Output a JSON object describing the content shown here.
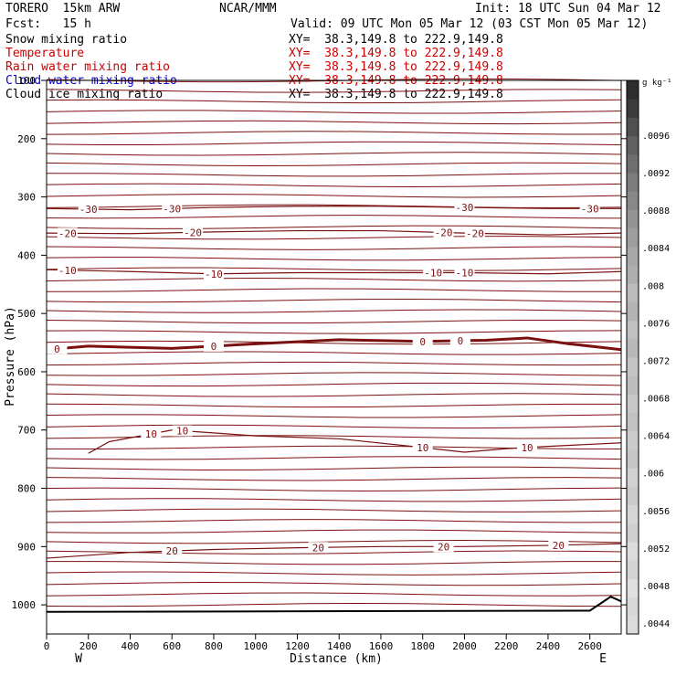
{
  "header": {
    "model": "TORERO  15km ARW",
    "center": "NCAR/MMM",
    "init": "Init: 18 UTC Sun 04 Mar 12",
    "fcst": "Fcst:   15 h",
    "valid": "Valid: 09 UTC Mon 05 Mar 12 (03 CST Mon 05 Mar 12)"
  },
  "legend": [
    {
      "name": "Snow mixing ratio",
      "xy": "XY=  38.3,149.8 to 222.9,149.8",
      "color": "#000000"
    },
    {
      "name": "Temperature",
      "xy": "XY=  38.3,149.8 to 222.9,149.8",
      "color": "#cc0000"
    },
    {
      "name": "Rain water mixing ratio",
      "xy": "XY=  38.3,149.8 to 222.9,149.8",
      "color": "#cc0000"
    },
    {
      "name": "Cloud water mixing ratio",
      "xy": "XY=  38.3,149.8 to 222.9,149.8",
      "color": "#0000cc"
    },
    {
      "name": "Cloud ice mixing ratio",
      "xy": "XY=  38.3,149.8 to 222.9,149.8",
      "color": "#000000"
    }
  ],
  "chart_data": {
    "type": "contour",
    "xlabel": "Distance (km)",
    "ylabel": "Pressure (hPa)",
    "xlim": [
      0,
      2750
    ],
    "ylim": [
      1050,
      100
    ],
    "x_ticks": [
      0,
      200,
      400,
      600,
      800,
      1000,
      1200,
      1400,
      1600,
      1800,
      2000,
      2200,
      2400,
      2600
    ],
    "y_ticks": [
      100,
      200,
      300,
      400,
      500,
      600,
      700,
      800,
      900,
      1000
    ],
    "y_tick_labels": [
      "100",
      "200",
      "300",
      "400",
      "500",
      "600",
      "700",
      "800",
      "900",
      "1000"
    ],
    "x_end_labels": {
      "left": "W",
      "right": "E"
    },
    "colorbar": {
      "unit": "g kg⁻¹",
      "labels": [
        ".0096",
        ".0092",
        ".0088",
        ".0084",
        ".008",
        ".0076",
        ".0072",
        ".0068",
        ".0064",
        ".006",
        ".0056",
        ".0052",
        ".0048",
        ".0044"
      ],
      "colors": [
        "#dcdcdc",
        "#d8d8d8",
        "#e0e0e0",
        "#d4d4d4",
        "#dcdcdc",
        "#cfcfcf",
        "#d6d6d6",
        "#cbcbcb",
        "#d2d2d2",
        "#c6c6c6",
        "#cccccc",
        "#c2c2c2",
        "#c8c8c8",
        "#bdbdbd",
        "#c4c4c4",
        "#b8b8b8",
        "#c0c0c0",
        "#b3b3b3",
        "#bbbbbb",
        "#aeaeae",
        "#a8a8a8",
        "#9e9e9e",
        "#949494",
        "#888888",
        "#7c7c7c",
        "#6e6e6e",
        "#606060",
        "#505050",
        "#3c3c3c",
        "#2e2e2e"
      ]
    },
    "temperature_contours": [
      {
        "label": "-30",
        "points": [
          [
            0,
            320
          ],
          [
            400,
            322
          ],
          [
            800,
            318
          ],
          [
            1200,
            316
          ],
          [
            1600,
            316
          ],
          [
            2000,
            318
          ],
          [
            2400,
            320
          ],
          [
            2750,
            320
          ]
        ],
        "label_x": [
          200,
          600,
          2000,
          2600
        ]
      },
      {
        "label": "-20",
        "points": [
          [
            0,
            362
          ],
          [
            400,
            363
          ],
          [
            800,
            360
          ],
          [
            1200,
            358
          ],
          [
            1600,
            358
          ],
          [
            2000,
            362
          ],
          [
            2400,
            365
          ],
          [
            2750,
            362
          ]
        ],
        "label_x": [
          100,
          700,
          1900,
          2050
        ]
      },
      {
        "label": "-10",
        "points": [
          [
            0,
            425
          ],
          [
            400,
            428
          ],
          [
            800,
            432
          ],
          [
            1200,
            430
          ],
          [
            1600,
            430
          ],
          [
            2000,
            430
          ],
          [
            2400,
            432
          ],
          [
            2750,
            428
          ]
        ],
        "label_x": [
          100,
          800,
          1850,
          2000
        ]
      },
      {
        "label": "0",
        "points": [
          [
            0,
            562
          ],
          [
            200,
            556
          ],
          [
            600,
            560
          ],
          [
            1000,
            552
          ],
          [
            1400,
            545
          ],
          [
            1800,
            548
          ],
          [
            2100,
            546
          ],
          [
            2300,
            542
          ],
          [
            2500,
            552
          ],
          [
            2750,
            562
          ]
        ],
        "label_x": [
          50,
          800,
          1800,
          1980
        ]
      },
      {
        "label": "10",
        "points": [
          [
            200,
            740
          ],
          [
            300,
            720
          ],
          [
            600,
            700
          ],
          [
            1000,
            710
          ],
          [
            1400,
            715
          ],
          [
            1800,
            730
          ],
          [
            2000,
            738
          ],
          [
            2200,
            732
          ],
          [
            2400,
            728
          ],
          [
            2750,
            722
          ]
        ],
        "label_x": [
          500,
          650,
          1800,
          2300
        ]
      },
      {
        "label": "20",
        "points": [
          [
            0,
            920
          ],
          [
            400,
            910
          ],
          [
            800,
            905
          ],
          [
            1200,
            902
          ],
          [
            1600,
            900
          ],
          [
            2000,
            900
          ],
          [
            2400,
            898
          ],
          [
            2750,
            895
          ]
        ],
        "label_x": [
          600,
          1300,
          1900,
          2450
        ]
      }
    ]
  }
}
